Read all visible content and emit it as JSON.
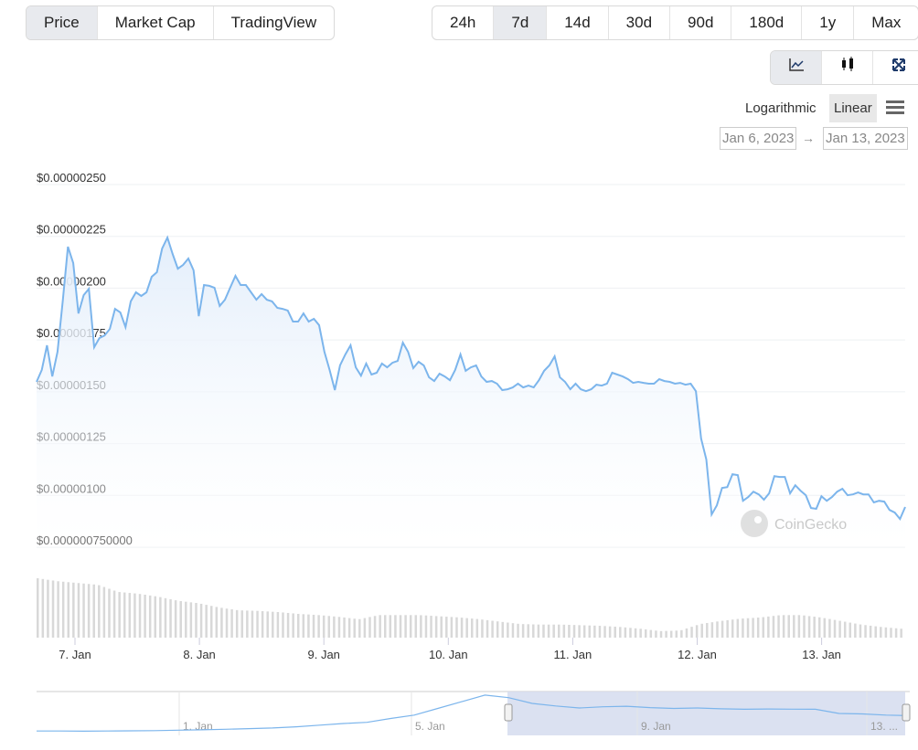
{
  "tabs": [
    "Price",
    "Market Cap",
    "TradingView"
  ],
  "active_tab": "Price",
  "ranges": [
    "24h",
    "7d",
    "14d",
    "30d",
    "90d",
    "180d",
    "1y",
    "Max"
  ],
  "active_range": "7d",
  "chart_types": [
    {
      "icon": "line-chart-icon",
      "active": true
    },
    {
      "icon": "candlestick-icon",
      "active": false
    },
    {
      "icon": "fullscreen-icon",
      "active": false
    }
  ],
  "scale": {
    "log_label": "Logarithmic",
    "linear_label": "Linear",
    "active": "Linear",
    "menu_icon": "hamburger-menu-icon"
  },
  "date_range": {
    "from": "Jan 6, 2023",
    "arrow": "→",
    "to": "Jan 13, 2023"
  },
  "watermark": "CoinGecko",
  "colors": {
    "line": "#7cb5ec",
    "fill_top": "#e3eefb",
    "volume": "#d8d8d8",
    "navigator_mask": "#d7deef",
    "active_btn": "#e8eaee"
  },
  "chart_data": {
    "type": "area",
    "title": "",
    "ytick_labels": [
      "$0.00000250",
      "$0.00000225",
      "$0.00000200",
      "$0.00000175",
      "$0.00000150",
      "$0.00000125",
      "$0.00000100",
      "$0.000000750000"
    ],
    "yticks": [
      2.5e-06,
      2.25e-06,
      2e-06,
      1.75e-06,
      1.5e-06,
      1.25e-06,
      1e-06,
      7.5e-07
    ],
    "ylim": [
      7.5e-07,
      2.5e-06
    ],
    "grid": true,
    "xtick_labels": [
      "7. Jan",
      "8. Jan",
      "9. Jan",
      "10. Jan",
      "11. Jan",
      "12. Jan",
      "13. Jan"
    ],
    "x_start": "2023-01-06 16:30",
    "interval": "1h",
    "price_e6": [
      1.548,
      1.605,
      1.724,
      1.574,
      1.693,
      1.936,
      2.2,
      2.121,
      1.878,
      1.966,
      1.997,
      1.715,
      1.759,
      1.772,
      1.803,
      1.9,
      1.883,
      1.812,
      1.936,
      1.98,
      1.962,
      1.98,
      2.055,
      2.077,
      2.191,
      2.244,
      2.165,
      2.094,
      2.112,
      2.143,
      2.086,
      1.865,
      2.015,
      2.011,
      2.002,
      1.914,
      1.944,
      2.002,
      2.059,
      2.015,
      2.015,
      1.98,
      1.944,
      1.971,
      1.944,
      1.936,
      1.905,
      1.9,
      1.892,
      1.839,
      1.839,
      1.878,
      1.839,
      1.852,
      1.821,
      1.693,
      1.605,
      1.508,
      1.627,
      1.68,
      1.724,
      1.618,
      1.578,
      1.636,
      1.583,
      1.592,
      1.636,
      1.618,
      1.64,
      1.649,
      1.737,
      1.693,
      1.614,
      1.645,
      1.627,
      1.57,
      1.552,
      1.587,
      1.574,
      1.556,
      1.605,
      1.68,
      1.601,
      1.618,
      1.627,
      1.574,
      1.548,
      1.552,
      1.539,
      1.508,
      1.512,
      1.521,
      1.539,
      1.521,
      1.53,
      1.521,
      1.556,
      1.601,
      1.627,
      1.671,
      1.57,
      1.548,
      1.512,
      1.539,
      1.512,
      1.503,
      1.512,
      1.534,
      1.53,
      1.539,
      1.592,
      1.583,
      1.574,
      1.561,
      1.543,
      1.548,
      1.543,
      1.539,
      1.539,
      1.561,
      1.552,
      1.548,
      1.539,
      1.543,
      1.534,
      1.539,
      1.503,
      1.274,
      1.173,
      0.908,
      0.952,
      1.036,
      1.04,
      1.102,
      1.098,
      0.974,
      0.992,
      1.018,
      1.005,
      0.979,
      1.01,
      1.093,
      1.089,
      1.089,
      1.01,
      1.049,
      1.023,
      1.001,
      0.939,
      0.935,
      0.996,
      0.974,
      0.992,
      1.018,
      1.032,
      1.001,
      1.005,
      1.014,
      1.005,
      1.005,
      0.966,
      0.974,
      0.97,
      0.93,
      0.917,
      0.886,
      0.944
    ],
    "volume_relative": [
      1.0,
      0.95,
      0.92,
      0.89,
      0.77,
      0.74,
      0.69,
      0.62,
      0.58,
      0.51,
      0.46,
      0.45,
      0.43,
      0.4,
      0.38,
      0.35,
      0.31,
      0.38,
      0.38,
      0.38,
      0.36,
      0.34,
      0.31,
      0.27,
      0.23,
      0.22,
      0.22,
      0.21,
      0.2,
      0.18,
      0.15,
      0.11,
      0.12,
      0.23,
      0.28,
      0.32,
      0.34,
      0.38,
      0.38,
      0.34,
      0.28,
      0.22,
      0.18,
      0.15
    ],
    "navigator": {
      "xtick_labels": [
        "1. Jan",
        "5. Jan",
        "9. Jan",
        "13. ..."
      ],
      "values_e6": [
        0.1,
        0.1,
        0.09,
        0.1,
        0.11,
        0.12,
        0.15,
        0.17,
        0.2,
        0.24,
        0.28,
        0.35,
        0.45,
        0.55,
        0.62,
        0.85,
        1.05,
        1.45,
        1.85,
        2.25,
        2.1,
        1.75,
        1.6,
        1.48,
        1.55,
        1.58,
        1.5,
        1.45,
        1.48,
        1.43,
        1.4,
        1.42,
        1.41,
        1.4,
        1.15,
        1.12,
        1.05,
        1.02
      ],
      "selected_from": "2023-01-06",
      "selected_to": "2023-01-13"
    }
  }
}
